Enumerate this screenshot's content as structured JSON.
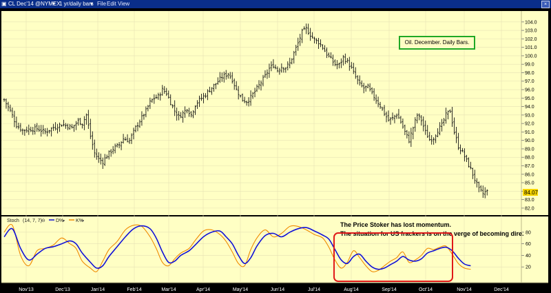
{
  "window": {
    "title": "CL Dec'14 @NYMEX",
    "interval": "1 yr/daily bars",
    "menu": [
      "File",
      "Edit",
      "View"
    ]
  },
  "main_panel": {
    "note": "Oil. December. Daily Bars.",
    "last_price_label": "84.07"
  },
  "stoch_panel": {
    "name": "Stoch",
    "params": "(14, 7, 7)",
    "legend": [
      {
        "label": "D%",
        "color": "#1010d8"
      },
      {
        "label": "K%",
        "color": "#f08a00"
      }
    ],
    "annotation_line1": "The Price Stoker has lost momentum.",
    "annotation_line2": "The situation for US frackers is on the verge  of becoming dire."
  },
  "colors": {
    "background": "#ffffc4",
    "bars": "#111111",
    "grid": "#e6e2b4",
    "highlight": "#e01818",
    "note_border": "#1fa824"
  },
  "chart_data": [
    {
      "type": "ohlc",
      "title": "",
      "x_ticks": [
        "Nov '13",
        "Dec '13",
        "Jan '14",
        "Feb '14",
        "Mar '14",
        "Apr '14",
        "May '14",
        "Jun '14",
        "Jul '14",
        "Aug '14",
        "Sep '14",
        "Oct '14",
        "Nov '14",
        "Dec '14"
      ],
      "y_ticks": [
        82,
        83,
        84,
        85,
        86,
        87,
        88,
        89,
        90,
        91,
        92,
        93,
        94,
        95,
        96,
        97,
        98,
        99,
        100,
        101,
        102,
        103,
        104
      ],
      "ylim": [
        81.5,
        104.8
      ],
      "x_index_range": [
        0,
        250
      ],
      "grid": true,
      "keypoints": [
        [
          0,
          94.8
        ],
        [
          3,
          93.5
        ],
        [
          6,
          91.8
        ],
        [
          9,
          91.2
        ],
        [
          12,
          91.3
        ],
        [
          16,
          91.4
        ],
        [
          20,
          91.0
        ],
        [
          24,
          91.5
        ],
        [
          28,
          91.9
        ],
        [
          30,
          91.8
        ],
        [
          33,
          91.5
        ],
        [
          36,
          92.3
        ],
        [
          38,
          92.0
        ],
        [
          40,
          93.0
        ],
        [
          42,
          90.5
        ],
        [
          44,
          88.5
        ],
        [
          46,
          87.8
        ],
        [
          48,
          87.5
        ],
        [
          50,
          88.2
        ],
        [
          53,
          89.0
        ],
        [
          56,
          89.5
        ],
        [
          58,
          90.2
        ],
        [
          61,
          90.0
        ],
        [
          64,
          91.5
        ],
        [
          66,
          92.3
        ],
        [
          69,
          93.5
        ],
        [
          71,
          94.5
        ],
        [
          73,
          95.0
        ],
        [
          75,
          95.2
        ],
        [
          77,
          96.0
        ],
        [
          79,
          95.6
        ],
        [
          81,
          94.5
        ],
        [
          83,
          93.5
        ],
        [
          85,
          92.8
        ],
        [
          87,
          93.2
        ],
        [
          89,
          93.8
        ],
        [
          91,
          93.0
        ],
        [
          93,
          94.2
        ],
        [
          95,
          94.8
        ],
        [
          98,
          95.4
        ],
        [
          100,
          96.0
        ],
        [
          103,
          96.7
        ],
        [
          106,
          97.5
        ],
        [
          109,
          97.9
        ],
        [
          111,
          97.2
        ],
        [
          113,
          96.0
        ],
        [
          116,
          94.8
        ],
        [
          118,
          94.6
        ],
        [
          120,
          95.1
        ],
        [
          122,
          95.8
        ],
        [
          124,
          96.5
        ],
        [
          127,
          97.6
        ],
        [
          129,
          98.5
        ],
        [
          131,
          98.9
        ],
        [
          133,
          98.3
        ],
        [
          135,
          98.7
        ],
        [
          137,
          98.6
        ],
        [
          139,
          99.1
        ],
        [
          141,
          100.3
        ],
        [
          143,
          101.5
        ],
        [
          145,
          102.8
        ],
        [
          147,
          103.2
        ],
        [
          149,
          102.5
        ],
        [
          151,
          101.9
        ],
        [
          153,
          101.6
        ],
        [
          155,
          101.0
        ],
        [
          157,
          100.2
        ],
        [
          159,
          99.6
        ],
        [
          161,
          99.0
        ],
        [
          163,
          98.9
        ],
        [
          165,
          99.8
        ],
        [
          167,
          99.3
        ],
        [
          169,
          98.5
        ],
        [
          171,
          97.5
        ],
        [
          173,
          96.6
        ],
        [
          175,
          96.2
        ],
        [
          177,
          96.3
        ],
        [
          179,
          95.5
        ],
        [
          181,
          94.8
        ],
        [
          183,
          94.1
        ],
        [
          185,
          93.2
        ],
        [
          187,
          92.4
        ],
        [
          189,
          92.6
        ],
        [
          191,
          93.1
        ],
        [
          193,
          92.2
        ],
        [
          195,
          91.0
        ],
        [
          197,
          90.0
        ],
        [
          199,
          91.5
        ],
        [
          201,
          93.0
        ],
        [
          203,
          92.4
        ],
        [
          205,
          91.0
        ],
        [
          207,
          90.1
        ],
        [
          209,
          90.3
        ],
        [
          211,
          91.2
        ],
        [
          213,
          91.8
        ],
        [
          215,
          93.0
        ],
        [
          217,
          93.5
        ],
        [
          219,
          91.0
        ],
        [
          221,
          89.3
        ],
        [
          223,
          88.6
        ],
        [
          225,
          87.6
        ],
        [
          227,
          86.6
        ],
        [
          229,
          85.4
        ],
        [
          231,
          84.2
        ],
        [
          233,
          83.7
        ],
        [
          235,
          84.07
        ]
      ],
      "last_price": 84.07
    },
    {
      "type": "line",
      "title": "",
      "y_ticks": [
        20,
        40,
        60,
        80
      ],
      "ylim": [
        0,
        100
      ],
      "series": [
        {
          "name": "D%",
          "color": "#1010d8",
          "points": [
            [
              0,
              72
            ],
            [
              4,
              86
            ],
            [
              8,
              52
            ],
            [
              12,
              32
            ],
            [
              16,
              42
            ],
            [
              20,
              52
            ],
            [
              24,
              55
            ],
            [
              28,
              60
            ],
            [
              32,
              65
            ],
            [
              35,
              60
            ],
            [
              38,
              44
            ],
            [
              42,
              28
            ],
            [
              45,
              18
            ],
            [
              48,
              22
            ],
            [
              51,
              38
            ],
            [
              55,
              55
            ],
            [
              59,
              72
            ],
            [
              63,
              86
            ],
            [
              67,
              91
            ],
            [
              71,
              86
            ],
            [
              74,
              70
            ],
            [
              77,
              46
            ],
            [
              80,
              28
            ],
            [
              83,
              30
            ],
            [
              86,
              40
            ],
            [
              90,
              48
            ],
            [
              93,
              58
            ],
            [
              97,
              72
            ],
            [
              101,
              80
            ],
            [
              105,
              82
            ],
            [
              108,
              72
            ],
            [
              111,
              60
            ],
            [
              114,
              40
            ],
            [
              117,
              26
            ],
            [
              120,
              36
            ],
            [
              123,
              56
            ],
            [
              127,
              74
            ],
            [
              131,
              78
            ],
            [
              135,
              72
            ],
            [
              139,
              80
            ],
            [
              143,
              86
            ],
            [
              147,
              88
            ],
            [
              151,
              82
            ],
            [
              155,
              75
            ],
            [
              158,
              68
            ],
            [
              161,
              50
            ],
            [
              164,
              32
            ],
            [
              167,
              26
            ],
            [
              170,
              38
            ],
            [
              173,
              42
            ],
            [
              176,
              30
            ],
            [
              179,
              20
            ],
            [
              182,
              16
            ],
            [
              185,
              18
            ],
            [
              188,
              24
            ],
            [
              191,
              30
            ],
            [
              194,
              38
            ],
            [
              197,
              32
            ],
            [
              200,
              30
            ],
            [
              203,
              34
            ],
            [
              206,
              44
            ],
            [
              209,
              48
            ],
            [
              212,
              52
            ],
            [
              215,
              54
            ],
            [
              218,
              48
            ],
            [
              221,
              35
            ],
            [
              224,
              25
            ],
            [
              227,
              22
            ]
          ]
        },
        {
          "name": "K%",
          "color": "#f08a00",
          "points": [
            [
              0,
              80
            ],
            [
              4,
              92
            ],
            [
              8,
              40
            ],
            [
              12,
              22
            ],
            [
              16,
              48
            ],
            [
              20,
              52
            ],
            [
              24,
              58
            ],
            [
              28,
              70
            ],
            [
              32,
              60
            ],
            [
              35,
              52
            ],
            [
              38,
              30
            ],
            [
              42,
              18
            ],
            [
              45,
              12
            ],
            [
              48,
              30
            ],
            [
              51,
              50
            ],
            [
              55,
              64
            ],
            [
              59,
              84
            ],
            [
              63,
              92
            ],
            [
              67,
              90
            ],
            [
              71,
              72
            ],
            [
              74,
              52
            ],
            [
              77,
              28
            ],
            [
              80,
              22
            ],
            [
              83,
              34
            ],
            [
              86,
              44
            ],
            [
              90,
              52
            ],
            [
              93,
              66
            ],
            [
              97,
              82
            ],
            [
              101,
              84
            ],
            [
              105,
              76
            ],
            [
              108,
              64
            ],
            [
              111,
              46
            ],
            [
              114,
              26
            ],
            [
              117,
              22
            ],
            [
              120,
              50
            ],
            [
              123,
              70
            ],
            [
              127,
              84
            ],
            [
              131,
              72
            ],
            [
              135,
              78
            ],
            [
              139,
              90
            ],
            [
              143,
              90
            ],
            [
              147,
              84
            ],
            [
              151,
              76
            ],
            [
              155,
              70
            ],
            [
              158,
              54
            ],
            [
              161,
              32
            ],
            [
              164,
              18
            ],
            [
              167,
              28
            ],
            [
              170,
              48
            ],
            [
              173,
              36
            ],
            [
              176,
              22
            ],
            [
              179,
              12
            ],
            [
              182,
              14
            ],
            [
              185,
              22
            ],
            [
              188,
              30
            ],
            [
              191,
              36
            ],
            [
              194,
              46
            ],
            [
              197,
              28
            ],
            [
              200,
              32
            ],
            [
              203,
              40
            ],
            [
              206,
              52
            ],
            [
              209,
              50
            ],
            [
              212,
              54
            ],
            [
              215,
              56
            ],
            [
              218,
              42
            ],
            [
              221,
              26
            ],
            [
              224,
              18
            ],
            [
              227,
              16
            ]
          ]
        }
      ]
    }
  ]
}
